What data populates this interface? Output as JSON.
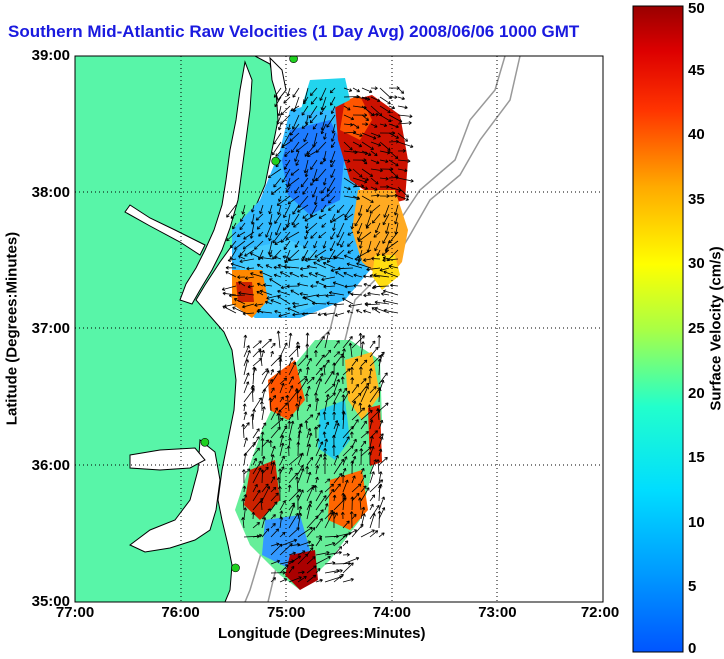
{
  "title": "Southern Mid-Atlantic Raw Velocities (1 Day Avg) 2008/06/06 1000 GMT",
  "axes": {
    "xlabel": "Longitude (Degrees:Minutes)",
    "ylabel": "Latitude (Degrees:Minutes)",
    "xticks": [
      "77:00",
      "76:00",
      "75:00",
      "74:00",
      "73:00",
      "72:00"
    ],
    "yticks": [
      "39:00",
      "38:00",
      "37:00",
      "36:00",
      "35:00"
    ],
    "xlim": [
      -77,
      -72
    ],
    "ylim": [
      35,
      39
    ],
    "grid": "dotted"
  },
  "colorbar": {
    "label": "Surface Velocity (cm/s)",
    "ticks": [
      "50",
      "45",
      "40",
      "35",
      "30",
      "25",
      "20",
      "15",
      "10",
      "5",
      "0"
    ],
    "range": [
      0,
      50
    ],
    "colormap": "jet"
  },
  "colors": {
    "land": "#58f5a8",
    "title": "#1a1adf",
    "station": "#20d020",
    "vector": "#000000",
    "bathymetry": "#999999"
  },
  "stations": [
    {
      "lon": -74.93,
      "lat": 38.98
    },
    {
      "lon": -75.1,
      "lat": 38.23
    },
    {
      "lon": -75.77,
      "lat": 36.17
    },
    {
      "lon": -75.48,
      "lat": 35.25
    }
  ]
}
